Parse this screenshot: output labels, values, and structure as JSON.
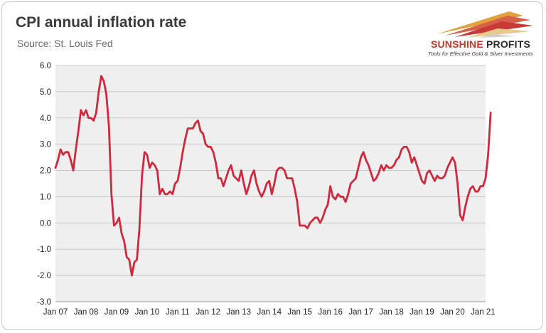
{
  "header": {
    "title": "CPI annual inflation rate",
    "subtitle": "Source: St. Louis Fed"
  },
  "logo": {
    "name_part1": "SUNSHINE",
    "name_part2": " PROFITS",
    "tagline": "Tools for Effective Gold & Silver Investments",
    "accent_color": "#c0392b"
  },
  "chart_data": {
    "type": "line",
    "title": "CPI annual inflation rate",
    "xlabel": "",
    "ylabel": "",
    "ylim": [
      -3.0,
      6.0
    ],
    "y_ticks": [
      "-3.0",
      "-2.0",
      "-1.0",
      "0.0",
      "1.0",
      "2.0",
      "3.0",
      "4.0",
      "5.0",
      "6.0"
    ],
    "x_ticks": [
      "Jan 07",
      "Jan 08",
      "Jan 09",
      "Jan 10",
      "Jan 11",
      "Jan 12",
      "Jan 13",
      "Jan 14",
      "Jan 15",
      "Jan 16",
      "Jan 17",
      "Jan 18",
      "Jan 19",
      "Jan 20",
      "Jan 21"
    ],
    "x_start": "Jan 07",
    "frequency": "monthly",
    "grid": true,
    "line_color": "#d0283c",
    "plot_background": "#efefef",
    "series": [
      {
        "values": [
          2.1,
          2.4,
          2.8,
          2.6,
          2.7,
          2.7,
          2.4,
          2.0,
          2.8,
          3.5,
          4.3,
          4.1,
          4.3,
          4.0,
          4.0,
          3.9,
          4.2,
          5.0,
          5.6,
          5.4,
          4.9,
          3.7,
          1.1,
          -0.1,
          0.0,
          0.2,
          -0.4,
          -0.7,
          -1.3,
          -1.4,
          -2.0,
          -1.5,
          -1.4,
          -0.2,
          1.8,
          2.7,
          2.6,
          2.1,
          2.3,
          2.2,
          2.0,
          1.1,
          1.3,
          1.1,
          1.1,
          1.2,
          1.1,
          1.5,
          1.6,
          2.1,
          2.7,
          3.2,
          3.6,
          3.6,
          3.6,
          3.8,
          3.9,
          3.5,
          3.4,
          3.0,
          2.9,
          2.9,
          2.7,
          2.3,
          1.7,
          1.7,
          1.4,
          1.7,
          2.0,
          2.2,
          1.8,
          1.7,
          1.6,
          2.0,
          1.5,
          1.1,
          1.4,
          1.8,
          2.0,
          1.5,
          1.2,
          1.0,
          1.2,
          1.5,
          1.6,
          1.1,
          1.5,
          2.0,
          2.1,
          2.1,
          2.0,
          1.7,
          1.7,
          1.7,
          1.3,
          0.8,
          -0.1,
          -0.1,
          -0.1,
          -0.2,
          0.0,
          0.1,
          0.2,
          0.2,
          0.0,
          0.2,
          0.5,
          0.7,
          1.4,
          1.0,
          0.9,
          1.1,
          1.0,
          1.0,
          0.8,
          1.1,
          1.5,
          1.6,
          1.7,
          2.1,
          2.5,
          2.7,
          2.4,
          2.2,
          1.9,
          1.6,
          1.7,
          1.9,
          2.2,
          2.0,
          2.2,
          2.1,
          2.1,
          2.2,
          2.4,
          2.5,
          2.8,
          2.9,
          2.9,
          2.7,
          2.3,
          2.5,
          2.2,
          1.9,
          1.6,
          1.5,
          1.9,
          2.0,
          1.8,
          1.6,
          1.8,
          1.7,
          1.7,
          1.8,
          2.1,
          2.3,
          2.5,
          2.3,
          1.5,
          0.3,
          0.1,
          0.6,
          1.0,
          1.3,
          1.4,
          1.2,
          1.2,
          1.4,
          1.4,
          1.7,
          2.6,
          4.2
        ]
      }
    ]
  }
}
